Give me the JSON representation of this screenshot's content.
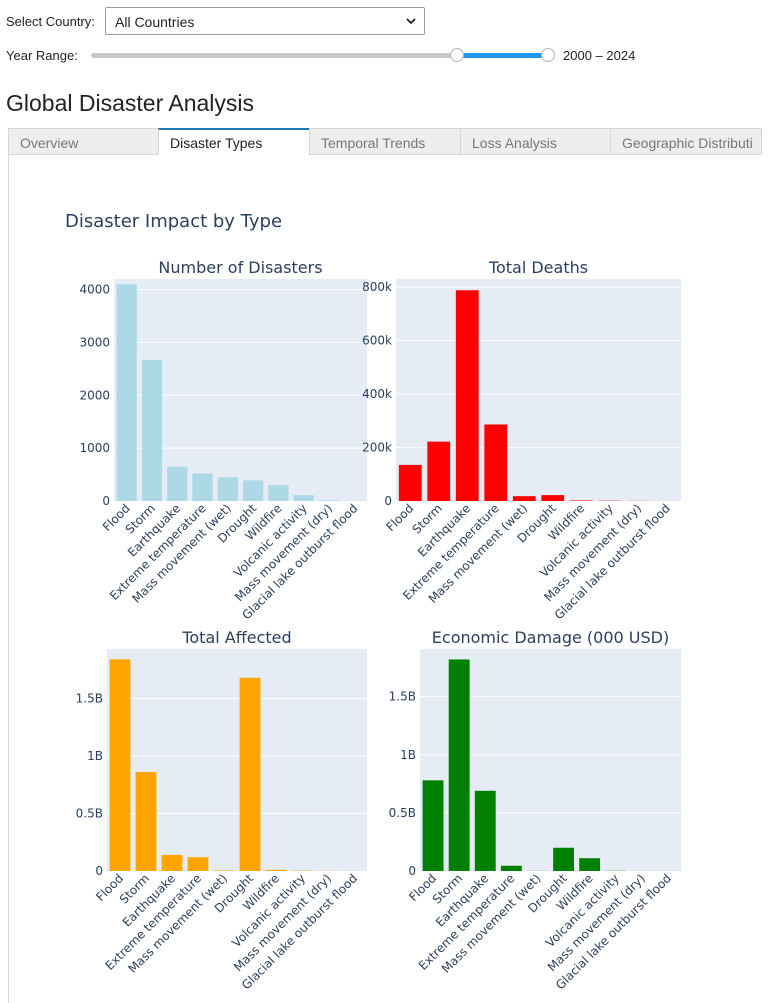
{
  "controls": {
    "country_label": "Select Country:",
    "country_value": "All Countries",
    "year_label": "Year Range:",
    "year_range_text": "2000 – 2024",
    "year_range": [
      2000,
      2024
    ],
    "slider_low_fraction": 0.8,
    "slider_high_fraction": 1.0
  },
  "title": "Global Disaster Analysis",
  "tabs": [
    {
      "label": "Overview",
      "active": false
    },
    {
      "label": "Disaster Types",
      "active": true
    },
    {
      "label": "Temporal Trends",
      "active": false
    },
    {
      "label": "Loss Analysis",
      "active": false
    },
    {
      "label": "Geographic Distributi",
      "active": false
    }
  ],
  "colors": {
    "accent": "#2196f3",
    "plot_bg": "#e5ecf6",
    "text": "#2a3f5f"
  },
  "chart_data": {
    "type": "bar",
    "title": "Disaster Impact by Type",
    "categories": [
      "Flood",
      "Storm",
      "Earthquake",
      "Extreme temperature",
      "Mass movement (wet)",
      "Drought",
      "Wildfire",
      "Volcanic activity",
      "Mass movement (dry)",
      "Glacial lake outburst flood"
    ],
    "subplots": [
      {
        "title": "Number of Disasters",
        "color": "#add8e6",
        "values": [
          4100,
          2670,
          650,
          520,
          450,
          390,
          300,
          110,
          15,
          5
        ],
        "ylim": [
          0,
          4200
        ],
        "ticks": [
          {
            "v": 0,
            "t": "0"
          },
          {
            "v": 1000,
            "t": "1000"
          },
          {
            "v": 2000,
            "t": "2000"
          },
          {
            "v": 3000,
            "t": "3000"
          },
          {
            "v": 4000,
            "t": "4000"
          }
        ]
      },
      {
        "title": "Total Deaths",
        "color": "#ff0000",
        "values": [
          135000,
          222000,
          788000,
          286000,
          18000,
          22000,
          2000,
          1000,
          500,
          100
        ],
        "ylim": [
          0,
          830000
        ],
        "ticks": [
          {
            "v": 0,
            "t": "0"
          },
          {
            "v": 200000,
            "t": "200k"
          },
          {
            "v": 400000,
            "t": "400k"
          },
          {
            "v": 600000,
            "t": "600k"
          },
          {
            "v": 800000,
            "t": "800k"
          }
        ]
      },
      {
        "title": "Total Affected",
        "color": "#ffa500",
        "values": [
          1840000000,
          860000000,
          140000000,
          120000000,
          5000000,
          1680000000,
          10000000,
          3000000,
          1000000,
          100000
        ],
        "ylim": [
          0,
          1930000000
        ],
        "ticks": [
          {
            "v": 0,
            "t": "0"
          },
          {
            "v": 500000000,
            "t": "0.5B"
          },
          {
            "v": 1000000000,
            "t": "1B"
          },
          {
            "v": 1500000000,
            "t": "1.5B"
          }
        ]
      },
      {
        "title": "Economic Damage (000 USD)",
        "color": "#008000",
        "values": [
          780000000,
          1820000000,
          690000000,
          45000000,
          1000000,
          200000000,
          110000000,
          2000000,
          500000,
          100000
        ],
        "ylim": [
          0,
          1910000000
        ],
        "ticks": [
          {
            "v": 0,
            "t": "0"
          },
          {
            "v": 500000000,
            "t": "0.5B"
          },
          {
            "v": 1000000000,
            "t": "1B"
          },
          {
            "v": 1500000000,
            "t": "1.5B"
          }
        ]
      }
    ]
  }
}
